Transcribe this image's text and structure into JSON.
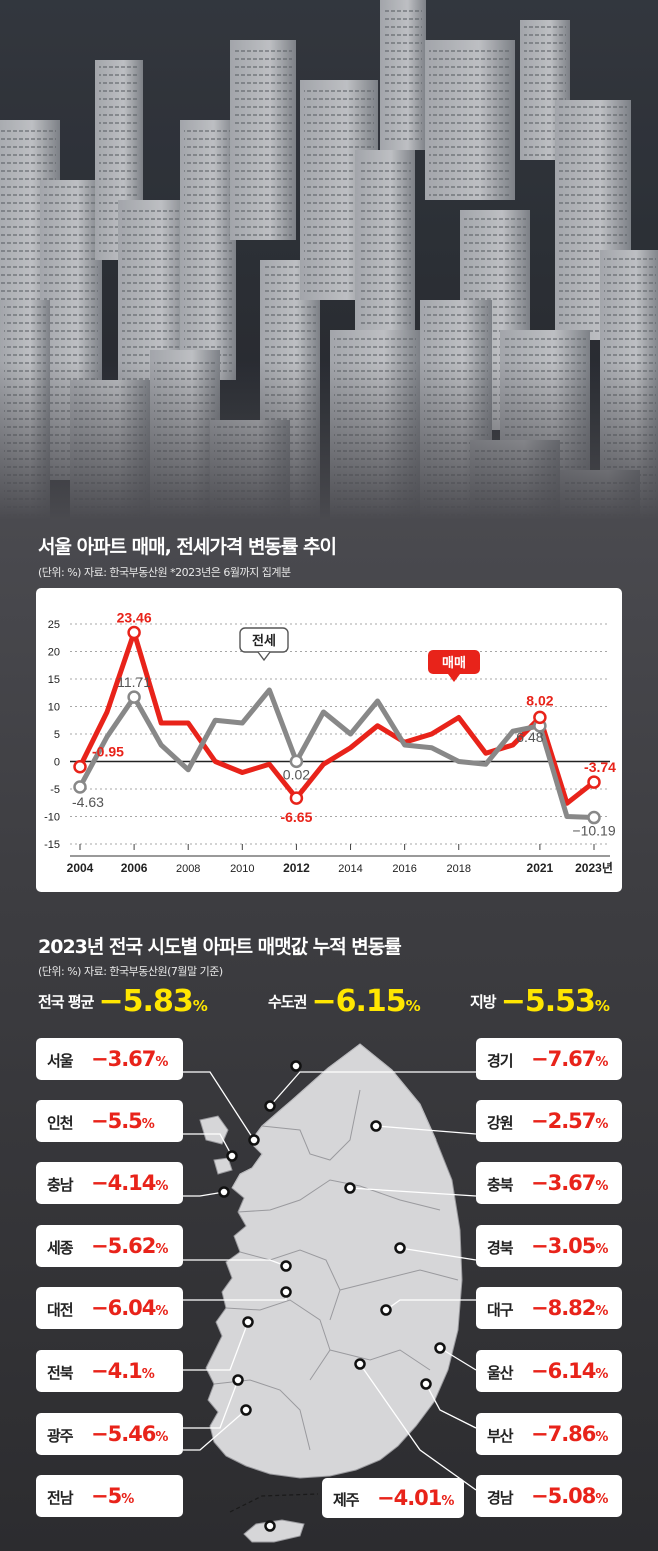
{
  "chart_data": [
    {
      "type": "line",
      "title": "서울 아파트 매매, 전세가격 변동률 추이",
      "source": "(단위: %) 자료: 한국부동산원 *2023년은 6월까지 집계분",
      "x": [
        2004,
        2005,
        2006,
        2007,
        2008,
        2009,
        2010,
        2011,
        2012,
        2013,
        2014,
        2015,
        2016,
        2017,
        2018,
        2019,
        2020,
        2021,
        2022,
        2023
      ],
      "xticks": [
        "2004",
        "2006",
        "2008",
        "2010",
        "2012",
        "2014",
        "2016",
        "2018",
        "2021",
        "2023년"
      ],
      "yticks": [
        "25",
        "20",
        "15",
        "10",
        "5",
        "0",
        "-5",
        "-10",
        "-15"
      ],
      "ylim": [
        -15,
        25
      ],
      "grid": true,
      "series": [
        {
          "name": "매매",
          "color": "#e8231a",
          "values": [
            -0.95,
            9.0,
            23.46,
            7.0,
            7.0,
            0.0,
            -2.0,
            -0.5,
            -6.65,
            -0.5,
            2.5,
            6.5,
            3.5,
            5.0,
            8.0,
            1.5,
            3.0,
            8.02,
            -7.6,
            -3.74
          ]
        },
        {
          "name": "전세",
          "color": "#888888",
          "values": [
            -4.63,
            4.5,
            11.71,
            3.0,
            -1.5,
            7.5,
            7.0,
            13.0,
            0.02,
            9.0,
            5.0,
            11.0,
            3.0,
            2.5,
            0.0,
            -0.5,
            5.5,
            6.48,
            -10.0,
            -10.19
          ]
        }
      ],
      "data_labels": {
        "sale": [
          "-0.95",
          "23.46",
          "-6.65",
          "8.02",
          "-3.74"
        ],
        "jeonse": [
          "-4.63",
          "11.71",
          "0.02",
          "6.48",
          "−10.19"
        ]
      }
    },
    {
      "type": "table",
      "title": "2023년 전국 시도별 아파트 매맷값 누적 변동률",
      "source": "(단위: %) 자료: 한국부동산원(7월말 기준)",
      "averages": [
        {
          "label": "전국 평균",
          "value": "−5.83",
          "unit": "%"
        },
        {
          "label": "수도권",
          "value": "−6.15",
          "unit": "%"
        },
        {
          "label": "지방",
          "value": "−5.53",
          "unit": "%"
        }
      ],
      "regions_left": [
        {
          "name": "서울",
          "value": "−3.67"
        },
        {
          "name": "인천",
          "value": "−5.5"
        },
        {
          "name": "충남",
          "value": "−4.14"
        },
        {
          "name": "세종",
          "value": "−5.62"
        },
        {
          "name": "대전",
          "value": "−6.04"
        },
        {
          "name": "전북",
          "value": "−4.1"
        },
        {
          "name": "광주",
          "value": "−5.46"
        },
        {
          "name": "전남",
          "value": "−5"
        }
      ],
      "regions_right": [
        {
          "name": "경기",
          "value": "−7.67"
        },
        {
          "name": "강원",
          "value": "−2.57"
        },
        {
          "name": "충북",
          "value": "−3.67"
        },
        {
          "name": "경북",
          "value": "−3.05"
        },
        {
          "name": "대구",
          "value": "−8.82"
        },
        {
          "name": "울산",
          "value": "−6.14"
        },
        {
          "name": "부산",
          "value": "−7.86"
        },
        {
          "name": "경남",
          "value": "−5.08"
        }
      ],
      "jeju": {
        "name": "제주",
        "value": "−4.01"
      },
      "unit": "%"
    }
  ],
  "colors": {
    "accent": "#e8231a",
    "highlight": "#ffe600",
    "jeonse": "#888888"
  }
}
